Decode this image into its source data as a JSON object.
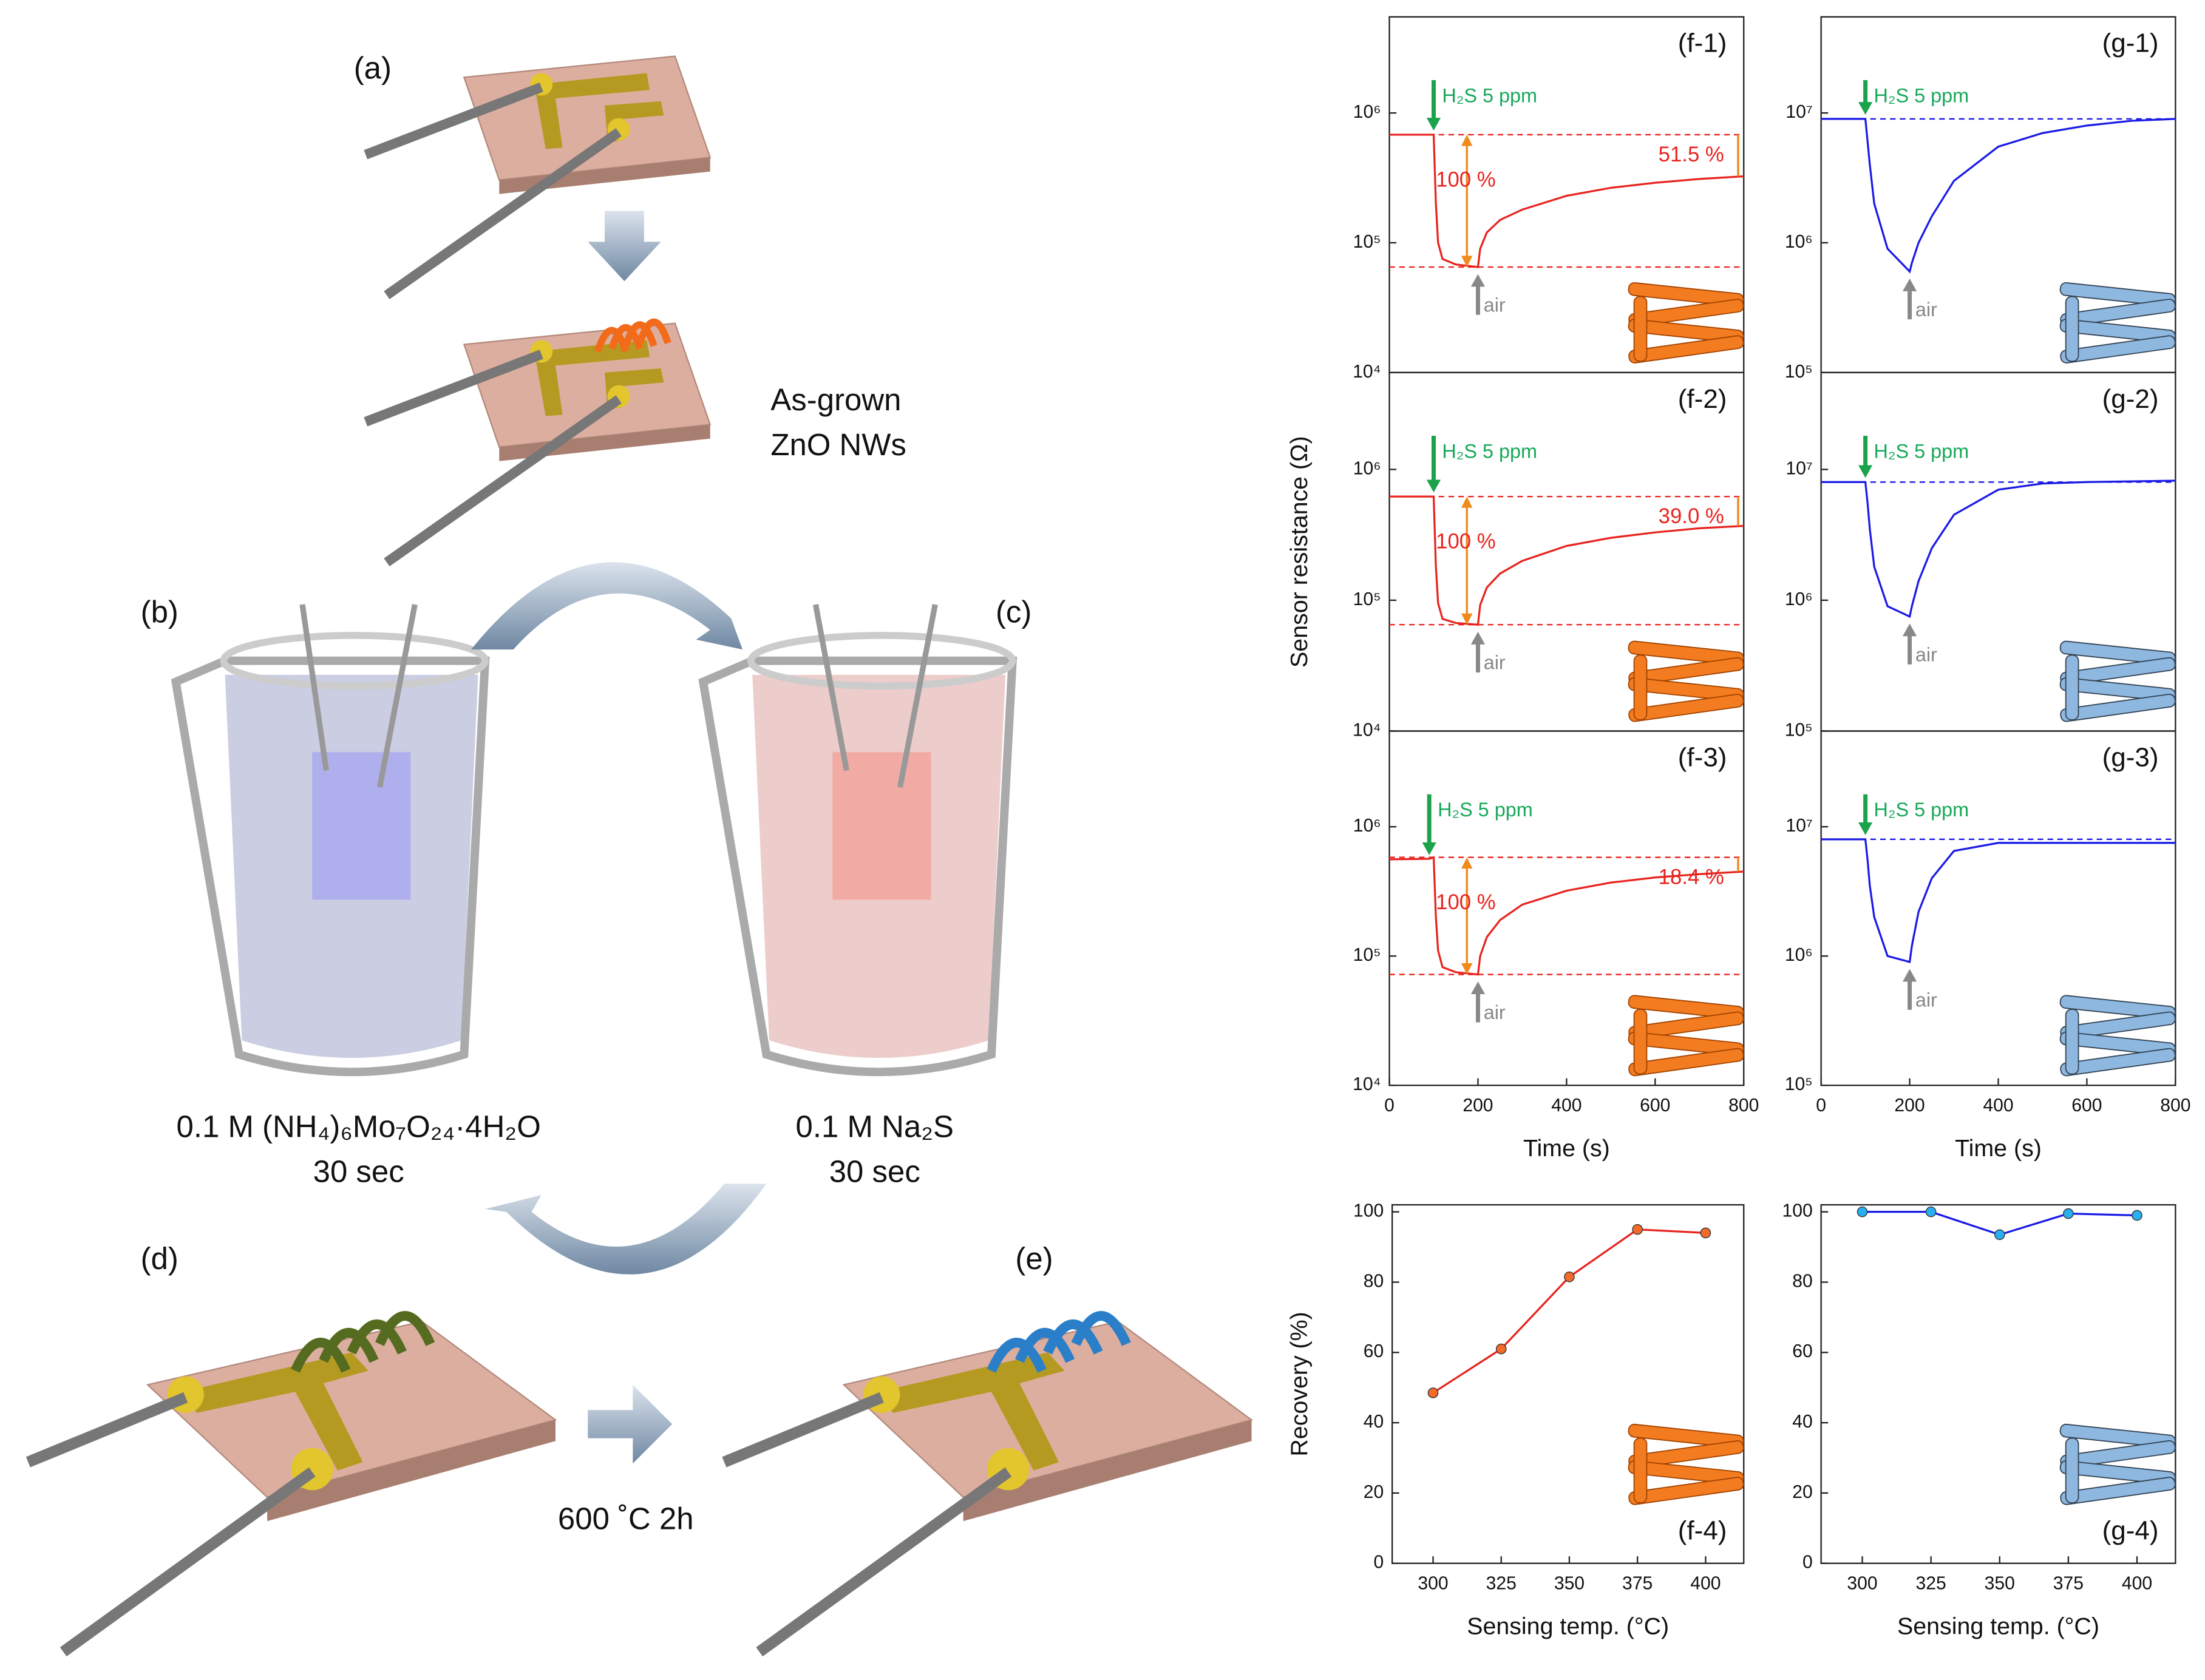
{
  "schematic": {
    "a": "(a)",
    "as_grown": "As-grown",
    "zno": "ZnO NWs",
    "b": "(b)",
    "c": "(c)",
    "solution_b": "0.1 M (NH₄)₆Mo₇O₂₄·4H₂O",
    "time_b": "30 sec",
    "solution_c": "0.1 M Na₂S",
    "time_c": "30 sec",
    "d": "(d)",
    "e": "(e)",
    "anneal": "600 ˚C 2h"
  },
  "chart_data": [
    {
      "type": "line",
      "title": "(f-1)",
      "ylog": true,
      "color": "#e8231e",
      "x": [
        0,
        100,
        105,
        110,
        120,
        150,
        200,
        205,
        220,
        250,
        300,
        400,
        500,
        600,
        700,
        800
      ],
      "values": [
        680000,
        680000,
        200000,
        100000,
        75000,
        68000,
        65000,
        90000,
        120000,
        150000,
        180000,
        230000,
        265000,
        290000,
        310000,
        325000
      ],
      "xlim": [
        0,
        800
      ],
      "ylim": [
        10000,
        5500000
      ],
      "yticks": [
        {
          "value": 10000,
          "label": "10⁴"
        },
        {
          "value": 100000,
          "label": "10⁵"
        },
        {
          "value": 1000000,
          "label": "10⁶"
        }
      ],
      "reference_lines": [
        680000,
        65000
      ],
      "annotations": {
        "gas": "H₂S 5 ppm",
        "air": "air",
        "response": "100 %",
        "recovery": "51.5 %"
      }
    },
    {
      "type": "line",
      "title": "(f-2)",
      "ylog": true,
      "color": "#e8231e",
      "ylabel": "Sensor resistance (Ω)",
      "x": [
        0,
        100,
        105,
        110,
        120,
        150,
        200,
        205,
        220,
        250,
        300,
        400,
        500,
        600,
        700,
        800
      ],
      "values": [
        620000,
        620000,
        180000,
        95000,
        72000,
        67000,
        65000,
        92000,
        125000,
        160000,
        200000,
        260000,
        300000,
        330000,
        355000,
        370000
      ],
      "xlim": [
        0,
        800
      ],
      "ylim": [
        10000,
        5500000
      ],
      "yticks": [
        {
          "value": 10000,
          "label": "10⁴"
        },
        {
          "value": 100000,
          "label": "10⁵"
        },
        {
          "value": 1000000,
          "label": "10⁶"
        }
      ],
      "reference_lines": [
        620000,
        65000
      ],
      "annotations": {
        "gas": "H₂S 5 ppm",
        "air": "air",
        "response": "100 %",
        "recovery": "39.0 %"
      }
    },
    {
      "type": "line",
      "title": "(f-3)",
      "ylog": true,
      "color": "#e8231e",
      "xlabel": "Time (s)",
      "x": [
        0,
        90,
        100,
        105,
        110,
        120,
        150,
        200,
        205,
        220,
        250,
        300,
        400,
        500,
        600,
        700,
        800
      ],
      "values": [
        560000,
        565000,
        580000,
        200000,
        110000,
        82000,
        75000,
        72000,
        100000,
        140000,
        190000,
        250000,
        320000,
        370000,
        405000,
        430000,
        450000
      ],
      "xlim": [
        0,
        800
      ],
      "ylim": [
        10000,
        5500000
      ],
      "xticks": [
        0,
        200,
        400,
        600,
        800
      ],
      "yticks": [
        {
          "value": 10000,
          "label": "10⁴"
        },
        {
          "value": 100000,
          "label": "10⁵"
        },
        {
          "value": 1000000,
          "label": "10⁶"
        }
      ],
      "reference_lines": [
        580000,
        72000
      ],
      "annotations": {
        "gas": "H₂S 5 ppm",
        "air": "air",
        "response": "100 %",
        "recovery": "18.4 %"
      }
    },
    {
      "type": "line",
      "title": "(g-1)",
      "ylog": true,
      "color": "#1a1ae6",
      "x": [
        0,
        100,
        105,
        110,
        120,
        150,
        200,
        205,
        220,
        250,
        300,
        400,
        500,
        600,
        700,
        800
      ],
      "values": [
        9000000,
        9000000,
        6000000,
        4000000,
        2000000,
        900000,
        600000,
        700000,
        1000000,
        1600000,
        3000000,
        5500000,
        7000000,
        8000000,
        8700000,
        9000000
      ],
      "xlim": [
        0,
        800
      ],
      "ylim": [
        100000,
        55000000
      ],
      "yticks": [
        {
          "value": 100000,
          "label": "10⁵"
        },
        {
          "value": 1000000,
          "label": "10⁶"
        },
        {
          "value": 10000000,
          "label": "10⁷"
        }
      ],
      "reference_lines": [
        9000000
      ],
      "annotations": {
        "gas": "H₂S 5 ppm",
        "air": "air"
      }
    },
    {
      "type": "line",
      "title": "(g-2)",
      "ylog": true,
      "color": "#1a1ae6",
      "x": [
        0,
        100,
        105,
        110,
        120,
        150,
        200,
        205,
        220,
        250,
        300,
        400,
        500,
        600,
        700,
        800
      ],
      "values": [
        8000000,
        8000000,
        5500000,
        3500000,
        1800000,
        900000,
        750000,
        900000,
        1400000,
        2500000,
        4500000,
        7000000,
        7800000,
        8000000,
        8100000,
        8200000
      ],
      "xlim": [
        0,
        800
      ],
      "ylim": [
        100000,
        55000000
      ],
      "yticks": [
        {
          "value": 100000,
          "label": "10⁵"
        },
        {
          "value": 1000000,
          "label": "10⁶"
        },
        {
          "value": 10000000,
          "label": "10⁷"
        }
      ],
      "reference_lines": [
        8000000
      ],
      "annotations": {
        "gas": "H₂S 5 ppm",
        "air": "air"
      }
    },
    {
      "type": "line",
      "title": "(g-3)",
      "ylog": true,
      "color": "#1a1ae6",
      "xlabel": "Time (s)",
      "x": [
        0,
        100,
        105,
        110,
        120,
        150,
        200,
        205,
        220,
        250,
        300,
        400,
        500,
        600,
        700,
        800
      ],
      "values": [
        8000000,
        8000000,
        5500000,
        3500000,
        2000000,
        1000000,
        900000,
        1200000,
        2200000,
        4000000,
        6500000,
        7500000,
        7500000,
        7500000,
        7500000,
        7500000
      ],
      "xlim": [
        0,
        800
      ],
      "ylim": [
        100000,
        55000000
      ],
      "xticks": [
        0,
        200,
        400,
        600,
        800
      ],
      "yticks": [
        {
          "value": 100000,
          "label": "10⁵"
        },
        {
          "value": 1000000,
          "label": "10⁶"
        },
        {
          "value": 10000000,
          "label": "10⁷"
        }
      ],
      "reference_lines": [
        8000000
      ],
      "annotations": {
        "gas": "H₂S 5 ppm",
        "air": "air"
      }
    },
    {
      "type": "line",
      "title": "(f-4)",
      "markers": true,
      "color": "#e8231e",
      "marker_color": "#f26b2a",
      "xlabel": "Sensing temp. (°C)",
      "ylabel": "Recovery (%)",
      "x": [
        300,
        325,
        350,
        375,
        400
      ],
      "values": [
        48.5,
        61,
        81.5,
        95,
        94
      ],
      "xlim": [
        285,
        414
      ],
      "ylim": [
        0,
        102
      ],
      "xticks": [
        300,
        325,
        350,
        375,
        400
      ],
      "yticks": [
        0,
        20,
        40,
        60,
        80,
        100
      ]
    },
    {
      "type": "line",
      "title": "(g-4)",
      "markers": true,
      "color": "#1a1ae6",
      "marker_color": "#29aef0",
      "xlabel": "Sensing temp. (°C)",
      "x": [
        300,
        325,
        350,
        375,
        400
      ],
      "values": [
        100,
        100,
        93.5,
        99.5,
        99
      ],
      "xlim": [
        285,
        414
      ],
      "ylim": [
        0,
        102
      ],
      "xticks": [
        300,
        325,
        350,
        375,
        400
      ],
      "yticks": [
        0,
        20,
        40,
        60,
        80,
        100
      ]
    }
  ]
}
